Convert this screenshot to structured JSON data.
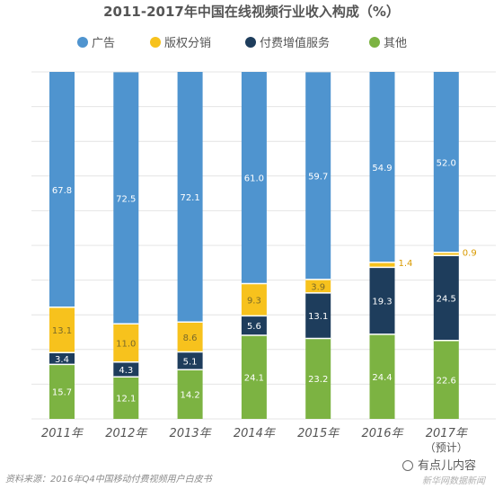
{
  "chart_data": {
    "type": "bar",
    "stacked": true,
    "percent": true,
    "title": "2011-2017年中国在线视频行业收入构成（%）",
    "categories": [
      "2011年",
      "2012年",
      "2013年",
      "2014年",
      "2015年",
      "2016年",
      "2017年"
    ],
    "category_notes": [
      "",
      "",
      "",
      "",
      "",
      "",
      "（预计）"
    ],
    "series": [
      {
        "name": "其他",
        "color": "#7cb342",
        "label_color": "#ffffff",
        "values": [
          15.7,
          12.1,
          14.2,
          24.1,
          23.2,
          24.4,
          22.6
        ]
      },
      {
        "name": "付费增值服务",
        "color": "#1e3d5c",
        "label_color": "#ffffff",
        "values": [
          3.4,
          4.3,
          5.1,
          5.6,
          13.1,
          19.3,
          24.5
        ]
      },
      {
        "name": "版权分销",
        "color": "#f7c21d",
        "label_color": "#7a6a2a",
        "values": [
          13.1,
          11.0,
          8.6,
          9.3,
          3.9,
          1.4,
          0.9
        ]
      },
      {
        "name": "广告",
        "color": "#4f94cf",
        "label_color": "#ffffff",
        "values": [
          67.8,
          72.5,
          72.1,
          61.0,
          59.7,
          54.9,
          52.0
        ]
      }
    ],
    "legend_order": [
      "广告",
      "版权分销",
      "付费增值服务",
      "其他"
    ],
    "legend_position": "top",
    "grid": true,
    "ylim": [
      0,
      100
    ]
  },
  "footer": {
    "source": "资料来源：2016年Q4中国移动付费视频用户白皮书"
  },
  "watermark": {
    "line1": "有点儿内容",
    "line2": "新华网数据新闻"
  }
}
